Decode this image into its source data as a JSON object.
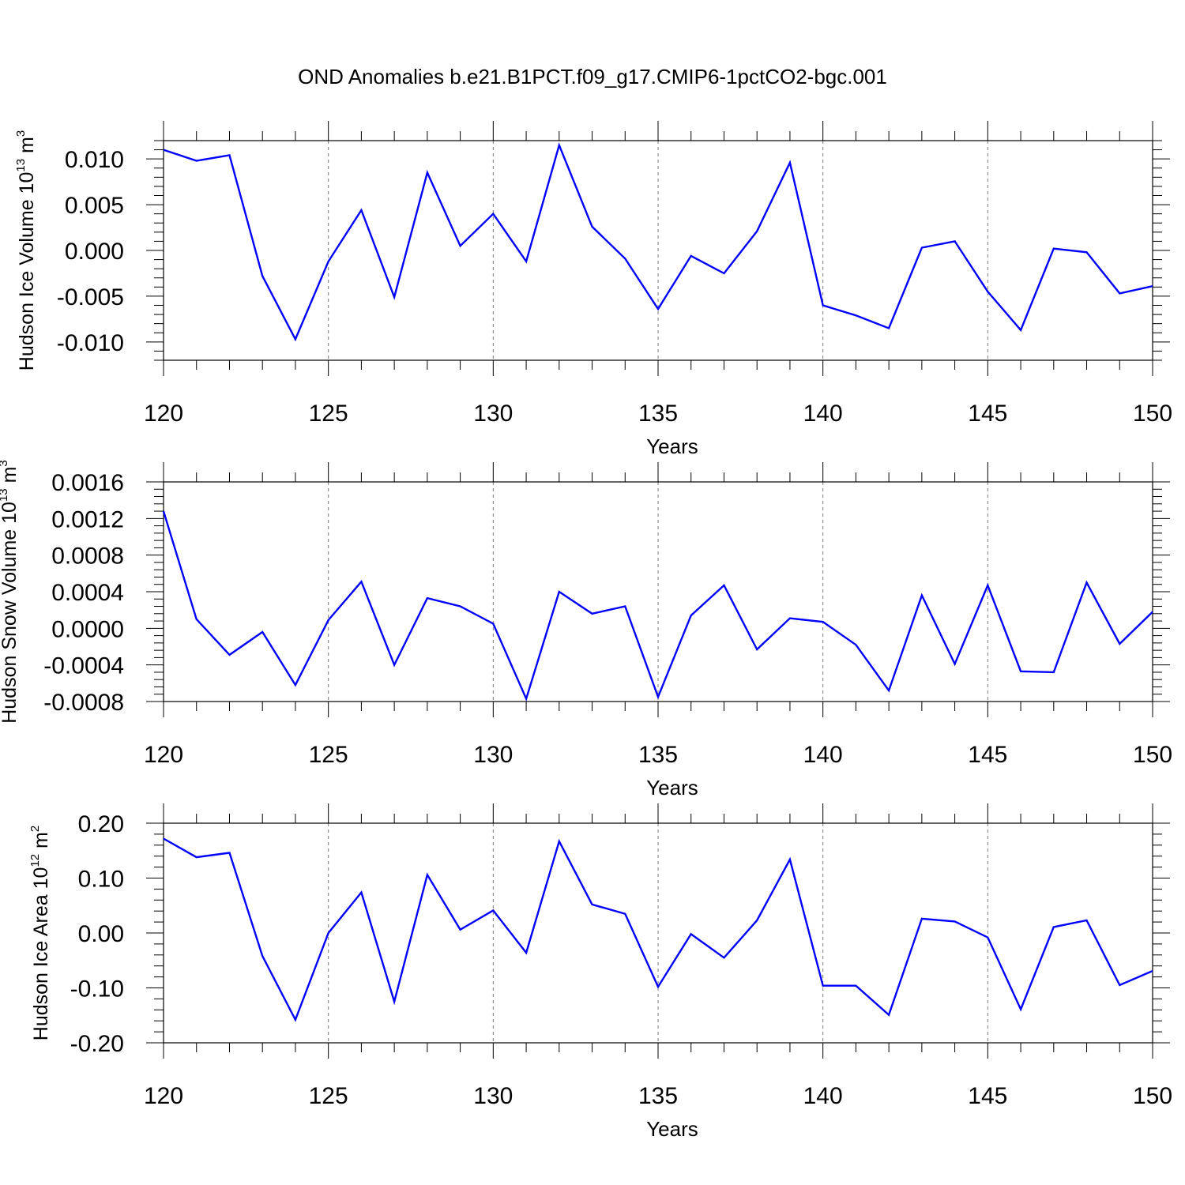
{
  "title": "OND Anomalies b.e21.B1PCT.f09_g17.CMIP6-1pctCO2-bgc.001",
  "series_color": "#0000ff",
  "chart_data": [
    {
      "type": "line",
      "title": "",
      "xlabel": "Years",
      "ylabel": "Hudson Ice Volume 10",
      "ylabel_exponent": "13",
      "ylabel_unit": "m",
      "ylabel_unit_exponent": "3",
      "xlim": [
        120,
        150
      ],
      "ylim": [
        -0.012,
        0.012
      ],
      "xticks": [
        120,
        125,
        130,
        135,
        140,
        145,
        150
      ],
      "xtick_labels": [
        "120",
        "125",
        "130",
        "135",
        "140",
        "145",
        "150"
      ],
      "yticks": [
        0.01,
        0.005,
        0.0,
        -0.005,
        -0.01
      ],
      "ytick_labels": [
        "0.010",
        "0.005",
        "0.000",
        "-0.005",
        "-0.010"
      ],
      "grid": "x-dashed",
      "x": [
        120,
        121,
        122,
        123,
        124,
        125,
        126,
        127,
        128,
        129,
        130,
        131,
        132,
        133,
        134,
        135,
        136,
        137,
        138,
        139,
        140,
        141,
        142,
        143,
        144,
        145,
        146,
        147,
        148,
        149,
        150
      ],
      "values": [
        0.011,
        0.0098,
        0.0104,
        -0.0028,
        -0.0097,
        -0.0012,
        0.0044,
        -0.0051,
        0.0085,
        0.0005,
        0.004,
        -0.0012,
        0.0115,
        0.0026,
        -0.0009,
        -0.0064,
        -0.0006,
        -0.0025,
        0.0021,
        0.0096,
        -0.006,
        -0.0071,
        -0.0085,
        0.0003,
        0.001,
        -0.0045,
        -0.0087,
        0.0002,
        -0.0002,
        -0.0047,
        -0.0039
      ]
    },
    {
      "type": "line",
      "title": "",
      "xlabel": "Years",
      "ylabel": "Hudson Snow Volume 10",
      "ylabel_exponent": "13",
      "ylabel_unit": "m",
      "ylabel_unit_exponent": "3",
      "xlim": [
        120,
        150
      ],
      "ylim": [
        -0.0008,
        0.0016
      ],
      "xticks": [
        120,
        125,
        130,
        135,
        140,
        145,
        150
      ],
      "xtick_labels": [
        "120",
        "125",
        "130",
        "135",
        "140",
        "145",
        "150"
      ],
      "yticks": [
        0.0016,
        0.0012,
        0.0008,
        0.0004,
        0.0,
        -0.0004,
        -0.0008
      ],
      "ytick_labels": [
        "0.0016",
        "0.0012",
        "0.0008",
        "0.0004",
        "0.0000",
        "-0.0004",
        "-0.0008"
      ],
      "grid": "x-dashed",
      "x": [
        120,
        121,
        122,
        123,
        124,
        125,
        126,
        127,
        128,
        129,
        130,
        131,
        132,
        133,
        134,
        135,
        136,
        137,
        138,
        139,
        140,
        141,
        142,
        143,
        144,
        145,
        146,
        147,
        148,
        149,
        150
      ],
      "values": [
        0.00128,
        0.0001,
        -0.00029,
        -4e-05,
        -0.00062,
        9e-05,
        0.00051,
        -0.0004,
        0.00033,
        0.00024,
        5e-05,
        -0.00077,
        0.0004,
        0.00016,
        0.00024,
        -0.00075,
        0.00014,
        0.00047,
        -0.00023,
        0.00011,
        7e-05,
        -0.00018,
        -0.00068,
        0.00036,
        -0.00039,
        0.00047,
        -0.00047,
        -0.00048,
        0.0005,
        -0.00017,
        0.00018
      ]
    },
    {
      "type": "line",
      "title": "",
      "xlabel": "Years",
      "ylabel": "Hudson Ice Area 10",
      "ylabel_exponent": "12",
      "ylabel_unit": "m",
      "ylabel_unit_exponent": "2",
      "xlim": [
        120,
        150
      ],
      "ylim": [
        -0.2,
        0.2
      ],
      "xticks": [
        120,
        125,
        130,
        135,
        140,
        145,
        150
      ],
      "xtick_labels": [
        "120",
        "125",
        "130",
        "135",
        "140",
        "145",
        "150"
      ],
      "yticks": [
        0.2,
        0.1,
        0.0,
        -0.1,
        -0.2
      ],
      "ytick_labels": [
        "0.20",
        "0.10",
        "0.00",
        "-0.10",
        "-0.20"
      ],
      "grid": "x-dashed",
      "x": [
        120,
        121,
        122,
        123,
        124,
        125,
        126,
        127,
        128,
        129,
        130,
        131,
        132,
        133,
        134,
        135,
        136,
        137,
        138,
        139,
        140,
        141,
        142,
        143,
        144,
        145,
        146,
        147,
        148,
        149,
        150
      ],
      "values": [
        0.172,
        0.138,
        0.146,
        -0.042,
        -0.158,
        0.0,
        0.074,
        -0.125,
        0.106,
        0.006,
        0.041,
        -0.036,
        0.167,
        0.052,
        0.035,
        -0.098,
        -0.002,
        -0.045,
        0.023,
        0.134,
        -0.096,
        -0.096,
        -0.149,
        0.026,
        0.021,
        -0.008,
        -0.139,
        0.011,
        0.023,
        -0.095,
        -0.069
      ]
    }
  ]
}
